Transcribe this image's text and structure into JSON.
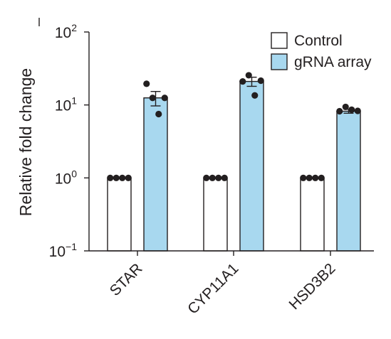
{
  "chart_data": {
    "type": "bar",
    "ylabel": "Relative fold change",
    "yscale": "log",
    "ylim": [
      0.1,
      100
    ],
    "yticks": [
      {
        "value": 0.1,
        "base": "10",
        "exp": "−1"
      },
      {
        "value": 1,
        "base": "10",
        "exp": "0"
      },
      {
        "value": 10,
        "base": "10",
        "exp": "1"
      },
      {
        "value": 100,
        "base": "10",
        "exp": "2"
      }
    ],
    "categories": [
      "STAR",
      "CYP11A1",
      "HSD3B2"
    ],
    "legend_position": "top-right",
    "series": [
      {
        "name": "Control",
        "color": "#ffffff",
        "values": [
          1,
          1,
          1
        ],
        "errors": [
          0,
          0,
          0
        ],
        "points": [
          [
            1,
            1,
            1,
            1
          ],
          [
            1,
            1,
            1,
            1
          ],
          [
            1,
            1,
            1,
            1
          ]
        ]
      },
      {
        "name": "gRNA array",
        "color": "#a8d8ef",
        "values": [
          12.5,
          21,
          8.2
        ],
        "errors": [
          2.8,
          3,
          0.5
        ],
        "points": [
          [
            19.5,
            12.5,
            7.5,
            12.5
          ],
          [
            21,
            25.5,
            13.5,
            21.5
          ],
          [
            8.2,
            9.4,
            8.6,
            8.3
          ]
        ]
      }
    ]
  }
}
